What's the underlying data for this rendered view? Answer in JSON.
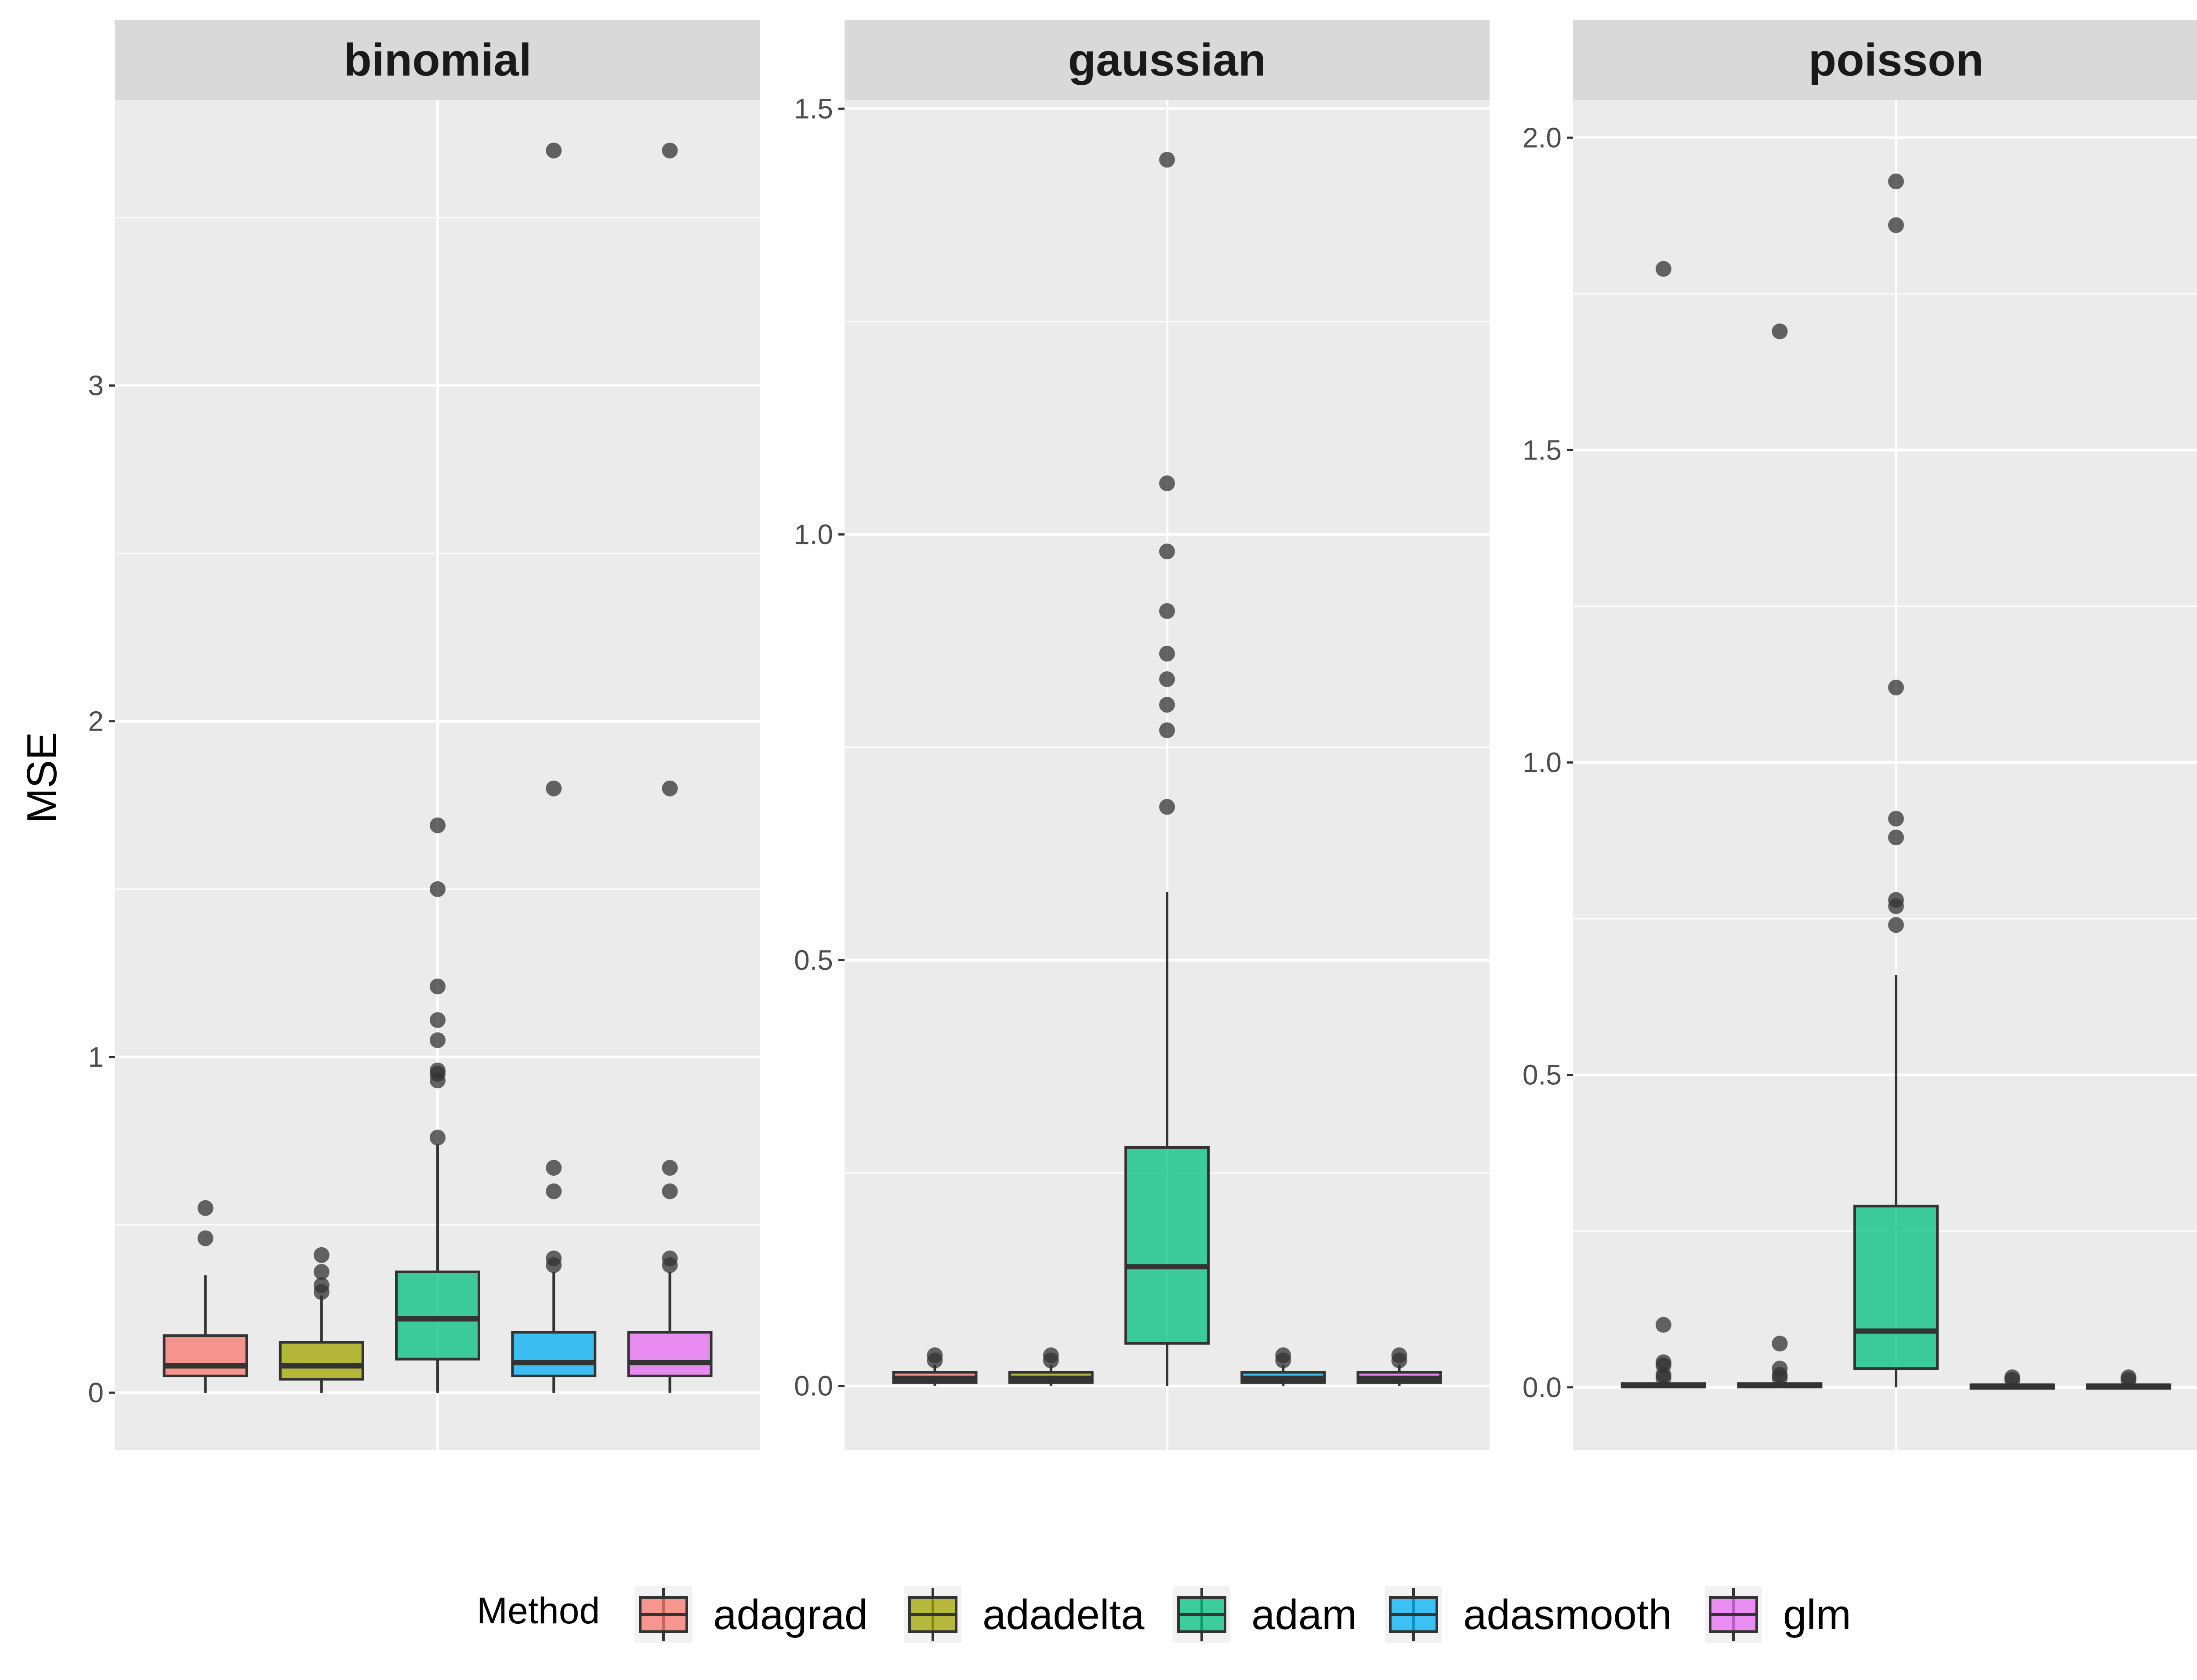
{
  "chart_data": {
    "type": "boxplot",
    "ylabel": "MSE",
    "xlabel": "",
    "legend": {
      "title": "Method",
      "placement": "bottom",
      "entries": [
        "adagrad",
        "adadelta",
        "adam",
        "adasmooth",
        "glm"
      ]
    },
    "colors": {
      "adagrad": "#F8766D",
      "adadelta": "#A3A500",
      "adam": "#00BF7D",
      "adasmooth": "#00B0F6",
      "glm": "#E76BF3",
      "panel_background": "#EBEBEB",
      "strip_background": "#D9D9D9",
      "grid": "#FFFFFF",
      "outline": "#333333"
    },
    "facets": [
      {
        "name": "binomial",
        "ylim": [
          -0.17,
          3.85
        ],
        "yticks": [
          0,
          1,
          2,
          3
        ],
        "tick_labels": [
          "0",
          "1",
          "2",
          "3"
        ],
        "series": [
          {
            "name": "adagrad",
            "min": 0.0,
            "q1": 0.05,
            "median": 0.08,
            "q3": 0.17,
            "max": 0.35,
            "outliers": [
              0.46,
              0.55
            ]
          },
          {
            "name": "adadelta",
            "min": 0.0,
            "q1": 0.04,
            "median": 0.08,
            "q3": 0.15,
            "max": 0.29,
            "outliers": [
              0.3,
              0.32,
              0.36,
              0.41
            ]
          },
          {
            "name": "adam",
            "min": 0.0,
            "q1": 0.1,
            "median": 0.22,
            "q3": 0.36,
            "max": 0.74,
            "outliers": [
              0.76,
              0.93,
              0.95,
              0.96,
              1.05,
              1.11,
              1.21,
              1.5,
              1.69
            ]
          },
          {
            "name": "adasmooth",
            "min": 0.0,
            "q1": 0.05,
            "median": 0.09,
            "q3": 0.18,
            "max": 0.36,
            "outliers": [
              0.38,
              0.4,
              0.6,
              0.67,
              1.8,
              3.7
            ]
          },
          {
            "name": "glm",
            "min": 0.0,
            "q1": 0.05,
            "median": 0.09,
            "q3": 0.18,
            "max": 0.36,
            "outliers": [
              0.38,
              0.4,
              0.6,
              0.67,
              1.8,
              3.7
            ]
          }
        ]
      },
      {
        "name": "gaussian",
        "ylim": [
          -0.075,
          1.51
        ],
        "yticks": [
          0,
          0.5,
          1,
          1.5
        ],
        "tick_labels": [
          "0.0",
          "0.5",
          "1.0",
          "1.5"
        ],
        "series": [
          {
            "name": "adagrad",
            "min": 0.0,
            "q1": 0.004,
            "median": 0.009,
            "q3": 0.016,
            "max": 0.025,
            "outliers": [
              0.03,
              0.036
            ]
          },
          {
            "name": "adadelta",
            "min": 0.0,
            "q1": 0.004,
            "median": 0.009,
            "q3": 0.016,
            "max": 0.025,
            "outliers": [
              0.03,
              0.036
            ]
          },
          {
            "name": "adam",
            "min": 0.0,
            "q1": 0.05,
            "median": 0.14,
            "q3": 0.28,
            "max": 0.58,
            "outliers": [
              0.68,
              0.77,
              0.8,
              0.83,
              0.86,
              0.91,
              0.98,
              1.06,
              1.44
            ]
          },
          {
            "name": "adasmooth",
            "min": 0.0,
            "q1": 0.004,
            "median": 0.009,
            "q3": 0.016,
            "max": 0.025,
            "outliers": [
              0.03,
              0.036
            ]
          },
          {
            "name": "glm",
            "min": 0.0,
            "q1": 0.004,
            "median": 0.009,
            "q3": 0.016,
            "max": 0.025,
            "outliers": [
              0.03,
              0.036
            ]
          }
        ]
      },
      {
        "name": "poisson",
        "ylim": [
          -0.1,
          2.06
        ],
        "yticks": [
          0,
          0.5,
          1,
          1.5,
          2
        ],
        "tick_labels": [
          "0.0",
          "0.5",
          "1.0",
          "1.5",
          "2.0"
        ],
        "series": [
          {
            "name": "adagrad",
            "min": 0.0,
            "q1": 0.001,
            "median": 0.003,
            "q3": 0.006,
            "max": 0.01,
            "outliers": [
              0.015,
              0.02,
              0.035,
              0.04,
              0.1,
              1.79
            ]
          },
          {
            "name": "adadelta",
            "min": 0.0,
            "q1": 0.001,
            "median": 0.003,
            "q3": 0.006,
            "max": 0.01,
            "outliers": [
              0.015,
              0.02,
              0.03,
              0.07,
              1.69
            ]
          },
          {
            "name": "adam",
            "min": 0.0,
            "q1": 0.03,
            "median": 0.09,
            "q3": 0.29,
            "max": 0.66,
            "outliers": [
              0.74,
              0.77,
              0.78,
              0.88,
              0.91,
              1.12,
              1.86,
              1.93
            ]
          },
          {
            "name": "adasmooth",
            "min": 0.0,
            "q1": 0.001,
            "median": 0.002,
            "q3": 0.004,
            "max": 0.008,
            "outliers": [
              0.012,
              0.016
            ]
          },
          {
            "name": "glm",
            "min": 0.0,
            "q1": 0.001,
            "median": 0.002,
            "q3": 0.004,
            "max": 0.008,
            "outliers": [
              0.012,
              0.016
            ]
          }
        ]
      }
    ]
  }
}
